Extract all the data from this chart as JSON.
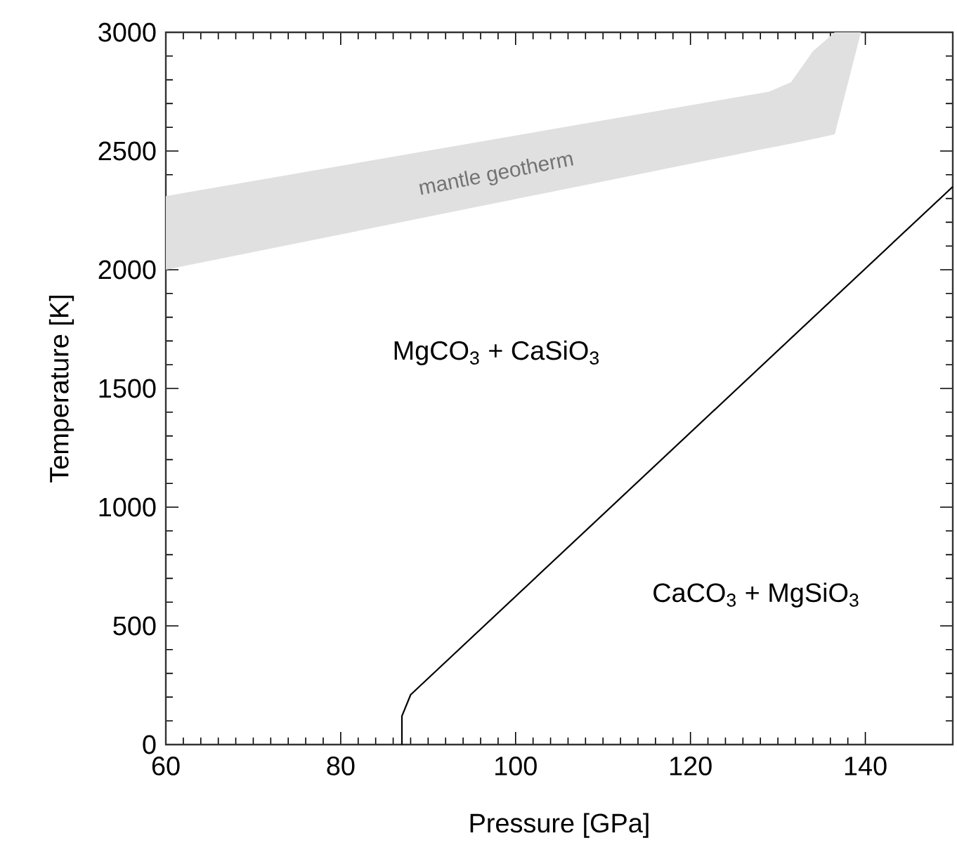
{
  "chart_data": {
    "type": "line",
    "xlabel": "Pressure [GPa]",
    "ylabel": "Temperature [K]",
    "xlim": [
      60,
      150
    ],
    "ylim": [
      0,
      3000
    ],
    "xticks": [
      60,
      80,
      100,
      120,
      140
    ],
    "yticks": [
      0,
      500,
      1000,
      1500,
      2000,
      2500,
      3000
    ],
    "grid": false,
    "marker": "none",
    "line_style": "solid",
    "series": [
      {
        "type": "area",
        "color": "#e0e0e0",
        "x": [
          60,
          129,
          131.5,
          134,
          136.5,
          139.5
        ],
        "values": [
          null,
          null,
          null,
          null,
          null,
          null
        ],
        "lower": [
          2000,
          2513,
          2531,
          2550,
          2570,
          3000
        ],
        "upper": [
          2310,
          2750,
          2790,
          2920,
          3000,
          3000
        ]
      },
      {
        "color": "#000000",
        "x": [
          87,
          87,
          88,
          150
        ],
        "values": [
          0,
          120,
          210,
          2350
        ]
      }
    ],
    "annotations": [
      "mantle geotherm",
      "MgCO$_{3}$ + CaSiO$_{3}$",
      "CaCO$_{3}$ + MgSiO$_{3}$"
    ]
  }
}
